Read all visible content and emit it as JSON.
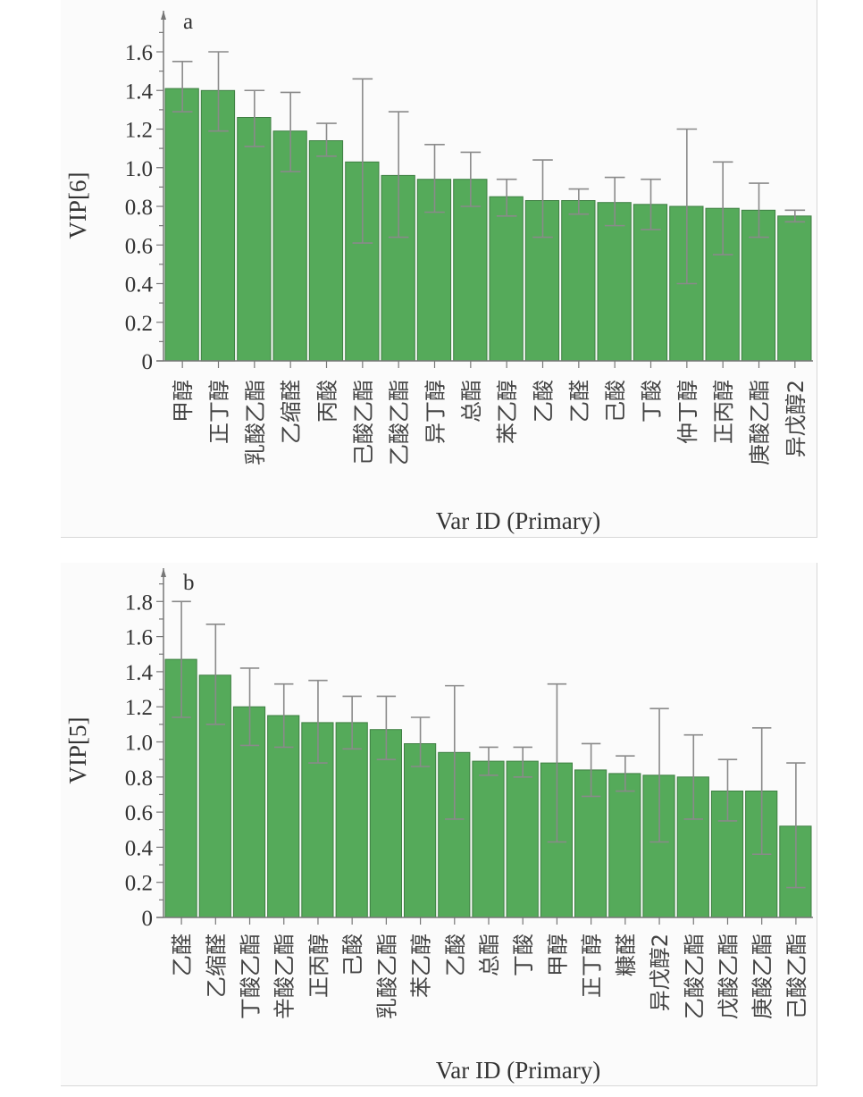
{
  "chart_data": [
    {
      "type": "bar",
      "panel": "a",
      "title": "",
      "panel_label": "a",
      "xlabel": "Var ID (Primary)",
      "ylabel": "VIP[6]",
      "ylim": [
        0,
        1.7
      ],
      "yticks": [
        0,
        0.2,
        0.4,
        0.6,
        0.8,
        1.0,
        1.2,
        1.4,
        1.6
      ],
      "ytick_labels": [
        "0",
        "0.2",
        "0.4",
        "0.6",
        "0.8",
        "1.0",
        "1.2",
        "1.4",
        "1.6"
      ],
      "grid": false,
      "bar_color": "#55aa5a",
      "error_color": "#8a8a8a",
      "categories": [
        "甲醇",
        "正丁醇",
        "乳酸乙酯",
        "乙缩醛",
        "丙酸",
        "己酸乙酯",
        "乙酸乙酯",
        "异丁醇",
        "总酯",
        "苯乙醇",
        "乙酸",
        "乙醛",
        "己酸",
        "丁酸",
        "仲丁醇",
        "正丙醇",
        "庚酸乙酯",
        "异戊醇2"
      ],
      "values": [
        1.41,
        1.4,
        1.26,
        1.19,
        1.14,
        1.03,
        0.96,
        0.94,
        0.94,
        0.85,
        0.83,
        0.83,
        0.82,
        0.81,
        0.8,
        0.79,
        0.78,
        0.75
      ],
      "error_high": [
        1.55,
        1.6,
        1.4,
        1.39,
        1.23,
        1.46,
        1.29,
        1.12,
        1.08,
        0.94,
        1.04,
        0.89,
        0.95,
        0.94,
        1.2,
        1.03,
        0.92,
        0.78
      ],
      "error_low": [
        1.29,
        1.19,
        1.11,
        0.98,
        1.06,
        0.61,
        0.64,
        0.77,
        0.8,
        0.75,
        0.64,
        0.76,
        0.7,
        0.68,
        0.4,
        0.55,
        0.64,
        0.72
      ]
    },
    {
      "type": "bar",
      "panel": "b",
      "title": "",
      "panel_label": "b",
      "xlabel": "Var ID (Primary)",
      "ylabel": "VIP[5]",
      "ylim": [
        0,
        1.9
      ],
      "yticks": [
        0,
        0.2,
        0.4,
        0.6,
        0.8,
        1.0,
        1.2,
        1.4,
        1.6,
        1.8
      ],
      "ytick_labels": [
        "0",
        "0.2",
        "0.4",
        "0.6",
        "0.8",
        "1.0",
        "1.2",
        "1.4",
        "1.6",
        "1.8"
      ],
      "grid": false,
      "bar_color": "#55aa5a",
      "error_color": "#8a8a8a",
      "categories": [
        "乙醛",
        "乙缩醛",
        "丁酸乙酯",
        "辛酸乙酯",
        "正丙醇",
        "己酸",
        "乳酸乙酯",
        "苯乙醇",
        "乙酸",
        "总酯",
        "丁酸",
        "甲醇",
        "正丁醇",
        "糠醛",
        "异戊醇2",
        "乙酸乙酯",
        "戊酸乙酯",
        "庚酸乙酯",
        "己酸乙酯"
      ],
      "values": [
        1.47,
        1.38,
        1.2,
        1.15,
        1.11,
        1.11,
        1.07,
        0.99,
        0.94,
        0.89,
        0.89,
        0.88,
        0.84,
        0.82,
        0.81,
        0.8,
        0.72,
        0.72,
        0.52
      ],
      "error_high": [
        1.8,
        1.67,
        1.42,
        1.33,
        1.35,
        1.26,
        1.26,
        1.14,
        1.32,
        0.97,
        0.97,
        1.33,
        0.99,
        0.92,
        1.19,
        1.04,
        0.9,
        1.08,
        0.88
      ],
      "error_low": [
        1.14,
        1.1,
        0.98,
        0.97,
        0.88,
        0.96,
        0.9,
        0.86,
        0.56,
        0.81,
        0.8,
        0.43,
        0.69,
        0.72,
        0.43,
        0.56,
        0.55,
        0.36,
        0.17
      ]
    }
  ]
}
